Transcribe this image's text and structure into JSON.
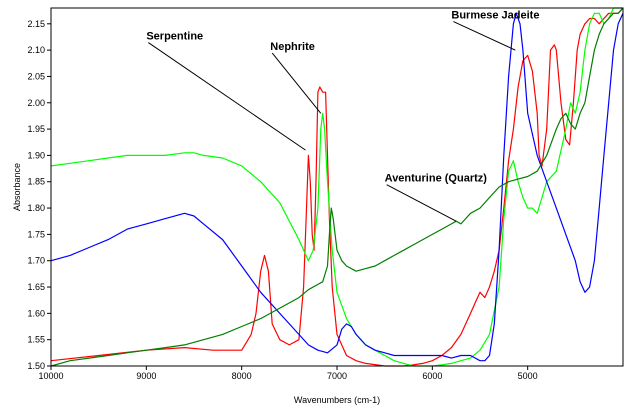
{
  "chart_data": {
    "type": "line",
    "title": "",
    "xlabel": "Wavenumbers (cm-1)",
    "ylabel": "Absorbance",
    "xlim": [
      10000,
      4000
    ],
    "ylim": [
      1.5,
      2.18
    ],
    "x_reversed": true,
    "x_ticks": [
      10000,
      9000,
      8000,
      7000,
      6000,
      5000
    ],
    "y_ticks": [
      1.5,
      1.55,
      1.6,
      1.65,
      1.7,
      1.75,
      1.8,
      1.85,
      1.9,
      1.95,
      2.0,
      2.05,
      2.1,
      2.15
    ],
    "grid": false,
    "legend": "none",
    "series": [
      {
        "label": "Nephrite",
        "color": "#ff0000",
        "x": [
          10000,
          9500,
          9000,
          8600,
          8300,
          8000,
          7900,
          7850,
          7800,
          7760,
          7720,
          7680,
          7600,
          7500,
          7400,
          7350,
          7320,
          7300,
          7280,
          7260,
          7240,
          7220,
          7200,
          7180,
          7150,
          7120,
          7100,
          7080,
          7050,
          7000,
          6900,
          6800,
          6700,
          6500,
          6300,
          6200,
          6100,
          6000,
          5900,
          5800,
          5700,
          5600,
          5550,
          5500,
          5450,
          5400,
          5350,
          5300,
          5250,
          5200,
          5150,
          5100,
          5050,
          5000,
          4950,
          4900,
          4880,
          4850,
          4800,
          4760,
          4720,
          4700,
          4650,
          4600,
          4560,
          4520,
          4480,
          4450,
          4400,
          4350,
          4300,
          4250,
          4200,
          4150,
          4100,
          4050,
          4000
        ],
        "y": [
          1.51,
          1.52,
          1.53,
          1.535,
          1.53,
          1.53,
          1.56,
          1.6,
          1.68,
          1.71,
          1.68,
          1.58,
          1.55,
          1.54,
          1.55,
          1.65,
          1.8,
          1.9,
          1.85,
          1.75,
          1.72,
          1.85,
          2.02,
          2.03,
          2.02,
          2.02,
          1.9,
          1.78,
          1.65,
          1.56,
          1.52,
          1.51,
          1.505,
          1.5,
          1.5,
          1.502,
          1.505,
          1.51,
          1.52,
          1.535,
          1.56,
          1.6,
          1.62,
          1.64,
          1.63,
          1.65,
          1.68,
          1.72,
          1.8,
          1.89,
          1.95,
          2.03,
          2.08,
          2.09,
          2.06,
          1.98,
          1.9,
          1.88,
          1.95,
          2.1,
          2.11,
          2.1,
          2.0,
          1.93,
          1.92,
          2.0,
          2.1,
          2.13,
          2.15,
          2.16,
          2.16,
          2.15,
          2.16,
          2.17,
          2.17,
          2.17,
          2.18
        ]
      },
      {
        "label": "Serpentine",
        "color": "#00ff00",
        "x": [
          10000,
          9800,
          9600,
          9400,
          9200,
          9000,
          8800,
          8600,
          8500,
          8400,
          8200,
          8000,
          7800,
          7600,
          7400,
          7300,
          7250,
          7200,
          7170,
          7150,
          7130,
          7100,
          7050,
          7000,
          6900,
          6800,
          6700,
          6600,
          6500,
          6400,
          6300,
          6200,
          6100,
          6000,
          5900,
          5800,
          5700,
          5600,
          5500,
          5400,
          5300,
          5250,
          5200,
          5150,
          5100,
          5050,
          5000,
          4950,
          4900,
          4850,
          4800,
          4700,
          4600,
          4550,
          4500,
          4450,
          4400,
          4350,
          4300,
          4250,
          4200,
          4150,
          4100,
          4050,
          4000
        ],
        "y": [
          1.88,
          1.885,
          1.89,
          1.895,
          1.9,
          1.9,
          1.9,
          1.905,
          1.905,
          1.9,
          1.895,
          1.88,
          1.85,
          1.81,
          1.74,
          1.7,
          1.72,
          1.8,
          1.95,
          1.98,
          1.95,
          1.85,
          1.72,
          1.64,
          1.59,
          1.56,
          1.54,
          1.53,
          1.52,
          1.51,
          1.505,
          1.5,
          1.5,
          1.5,
          1.502,
          1.505,
          1.51,
          1.515,
          1.53,
          1.56,
          1.65,
          1.78,
          1.87,
          1.89,
          1.85,
          1.82,
          1.8,
          1.8,
          1.79,
          1.82,
          1.85,
          1.87,
          1.95,
          2.0,
          1.98,
          2.02,
          2.1,
          2.15,
          2.17,
          2.17,
          2.15,
          2.16,
          2.18,
          2.18,
          2.18
        ]
      },
      {
        "label": "Burmese Jadeite",
        "color": "#0000ff",
        "x": [
          10000,
          9800,
          9600,
          9400,
          9200,
          9000,
          8800,
          8600,
          8500,
          8400,
          8200,
          8000,
          7800,
          7600,
          7400,
          7300,
          7200,
          7100,
          7000,
          6950,
          6900,
          6850,
          6800,
          6700,
          6600,
          6500,
          6400,
          6300,
          6200,
          6100,
          6000,
          5900,
          5800,
          5700,
          5600,
          5500,
          5450,
          5400,
          5350,
          5300,
          5250,
          5200,
          5150,
          5120,
          5100,
          5080,
          5050,
          5000,
          4900,
          4800,
          4700,
          4600,
          4500,
          4450,
          4400,
          4350,
          4300,
          4250,
          4200,
          4150,
          4100,
          4050,
          4000
        ],
        "y": [
          1.7,
          1.71,
          1.725,
          1.74,
          1.76,
          1.77,
          1.78,
          1.79,
          1.785,
          1.77,
          1.74,
          1.69,
          1.64,
          1.6,
          1.56,
          1.54,
          1.53,
          1.525,
          1.54,
          1.57,
          1.58,
          1.575,
          1.56,
          1.54,
          1.53,
          1.525,
          1.52,
          1.52,
          1.52,
          1.52,
          1.52,
          1.52,
          1.515,
          1.52,
          1.52,
          1.51,
          1.51,
          1.52,
          1.58,
          1.72,
          1.9,
          2.05,
          2.15,
          2.17,
          2.16,
          2.15,
          2.1,
          1.98,
          1.9,
          1.85,
          1.8,
          1.75,
          1.7,
          1.66,
          1.64,
          1.65,
          1.7,
          1.8,
          1.9,
          2.0,
          2.1,
          2.15,
          2.17
        ]
      },
      {
        "label": "Aventurine (Quartz)",
        "color": "#007f00",
        "x": [
          10000,
          9800,
          9600,
          9400,
          9200,
          9000,
          8800,
          8600,
          8400,
          8200,
          8000,
          7800,
          7600,
          7400,
          7300,
          7200,
          7150,
          7100,
          7080,
          7060,
          7040,
          7020,
          7000,
          6950,
          6900,
          6800,
          6700,
          6600,
          6500,
          6400,
          6300,
          6200,
          6100,
          6000,
          5900,
          5800,
          5750,
          5700,
          5650,
          5600,
          5500,
          5400,
          5300,
          5200,
          5100,
          5000,
          4900,
          4800,
          4700,
          4650,
          4600,
          4550,
          4500,
          4450,
          4400,
          4350,
          4300,
          4250,
          4200,
          4150,
          4100,
          4050,
          4000
        ],
        "y": [
          1.5,
          1.51,
          1.515,
          1.52,
          1.525,
          1.53,
          1.535,
          1.54,
          1.55,
          1.56,
          1.575,
          1.59,
          1.61,
          1.63,
          1.645,
          1.655,
          1.66,
          1.69,
          1.75,
          1.8,
          1.78,
          1.75,
          1.72,
          1.7,
          1.69,
          1.68,
          1.685,
          1.69,
          1.7,
          1.71,
          1.72,
          1.73,
          1.74,
          1.75,
          1.76,
          1.77,
          1.775,
          1.77,
          1.78,
          1.79,
          1.8,
          1.82,
          1.84,
          1.85,
          1.855,
          1.86,
          1.87,
          1.9,
          1.95,
          1.97,
          1.98,
          1.96,
          1.95,
          1.98,
          2.0,
          2.05,
          2.1,
          2.13,
          2.15,
          2.16,
          2.17,
          2.17,
          2.18
        ]
      }
    ],
    "annotations": [
      {
        "text": "Serpentine",
        "x": 9000,
        "y": 2.12,
        "target_x": 7330,
        "target_y": 1.91
      },
      {
        "text": "Nephrite",
        "x": 7700,
        "y": 2.1,
        "target_x": 7170,
        "target_y": 1.98
      },
      {
        "text": "Burmese Jadeite",
        "x": 5800,
        "y": 2.16,
        "target_x": 5130,
        "target_y": 2.1
      },
      {
        "text": "Aventurine (Quartz)",
        "x": 6500,
        "y": 1.85,
        "target_x": 5750,
        "target_y": 1.775
      }
    ]
  }
}
